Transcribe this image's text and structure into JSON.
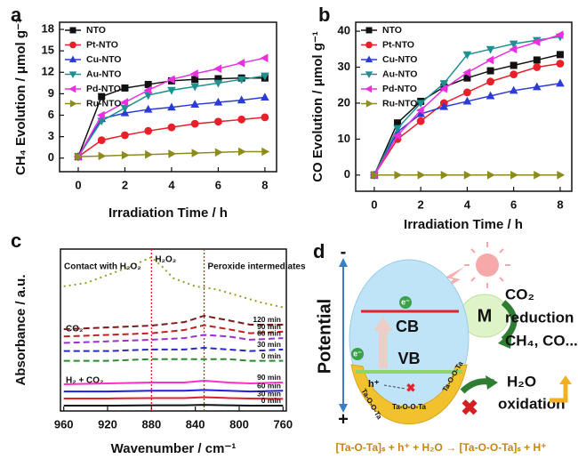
{
  "chart_data": [
    {
      "type": "line",
      "panel_label": "a",
      "xlabel": "Irradiation Time / h",
      "ylabel": "CH₄ Evolution / μmol g⁻¹",
      "x": [
        0,
        1,
        2,
        3,
        4,
        5,
        6,
        7,
        8
      ],
      "xlim": [
        -0.8,
        8.5
      ],
      "xticks": [
        0,
        2,
        4,
        6,
        8
      ],
      "ylim": [
        -1.9,
        19
      ],
      "yticks": [
        0,
        3,
        6,
        9,
        12,
        15,
        18
      ],
      "legend": "upper left",
      "series": [
        {
          "name": "NTO",
          "color": "#111111",
          "marker": "square",
          "values": [
            0.2,
            8.6,
            9.8,
            10.3,
            10.8,
            11.0,
            11.1,
            11.2,
            11.2
          ]
        },
        {
          "name": "Pt-NTO",
          "color": "#e8202a",
          "marker": "circle",
          "values": [
            0.2,
            2.5,
            3.2,
            3.8,
            4.3,
            4.8,
            5.1,
            5.4,
            5.7
          ]
        },
        {
          "name": "Cu-NTO",
          "color": "#2a3bd6",
          "marker": "triangle-up",
          "values": [
            0.2,
            5.5,
            6.3,
            6.8,
            7.1,
            7.5,
            7.8,
            8.1,
            8.5
          ]
        },
        {
          "name": "Au-NTO",
          "color": "#1f8f8f",
          "marker": "triangle-down",
          "values": [
            0.2,
            5.2,
            7.0,
            8.8,
            9.5,
            10.0,
            10.5,
            11.0,
            11.5
          ]
        },
        {
          "name": "Pd-NTO",
          "color": "#e830e0",
          "marker": "triangle-left",
          "values": [
            0.2,
            6.0,
            7.8,
            9.5,
            11.0,
            11.8,
            12.5,
            13.3,
            14.0
          ]
        },
        {
          "name": "Ru-NTO",
          "color": "#8c8c1c",
          "marker": "triangle-right",
          "values": [
            0.2,
            0.3,
            0.4,
            0.5,
            0.6,
            0.7,
            0.8,
            0.9,
            0.9
          ]
        }
      ]
    },
    {
      "type": "line",
      "panel_label": "b",
      "xlabel": "Irradiation Time / h",
      "ylabel": "CO Evolution / μmol g⁻¹",
      "x": [
        0,
        1,
        2,
        3,
        4,
        5,
        6,
        7,
        8
      ],
      "xlim": [
        -0.8,
        8.5
      ],
      "xticks": [
        0,
        2,
        4,
        6,
        8
      ],
      "ylim": [
        -4.5,
        42.5
      ],
      "yticks": [
        0,
        10,
        20,
        30,
        40
      ],
      "legend": "upper left",
      "series": [
        {
          "name": "NTO",
          "color": "#111111",
          "marker": "square",
          "values": [
            0,
            14.5,
            20.5,
            24.5,
            27,
            29,
            30.5,
            32,
            33.5
          ]
        },
        {
          "name": "Pt-NTO",
          "color": "#e8202a",
          "marker": "circle",
          "values": [
            0,
            10,
            15,
            20,
            23,
            26,
            28,
            30,
            31
          ]
        },
        {
          "name": "Cu-NTO",
          "color": "#2a3bd6",
          "marker": "triangle-up",
          "values": [
            0,
            12,
            17,
            19,
            20.5,
            22,
            23.5,
            24.5,
            25.5
          ]
        },
        {
          "name": "Au-NTO",
          "color": "#1f8f8f",
          "marker": "triangle-down",
          "values": [
            0,
            13,
            20,
            25.5,
            33.5,
            35,
            36.5,
            37.5,
            38.5
          ]
        },
        {
          "name": "Pd-NTO",
          "color": "#e830e0",
          "marker": "triangle-left",
          "values": [
            0,
            11,
            18,
            24,
            28.5,
            32,
            35,
            37,
            39
          ]
        },
        {
          "name": "Ru-NTO",
          "color": "#8c8c1c",
          "marker": "triangle-right",
          "values": [
            0,
            0,
            0,
            0,
            0,
            0,
            0,
            0,
            0
          ]
        }
      ]
    },
    {
      "type": "spectra",
      "panel_label": "c",
      "xlabel": "Wavenumber / cm⁻¹",
      "ylabel": "Absorbance / a.u.",
      "x": [
        960,
        920,
        880,
        850,
        832,
        810,
        790,
        760
      ],
      "xlim": [
        963,
        757
      ],
      "xticks": [
        960,
        920,
        880,
        840,
        800,
        760
      ],
      "ylim": [
        0,
        10
      ],
      "reference_lines": [
        {
          "x": 880,
          "label": "H₂O₂"
        },
        {
          "x": 832,
          "label": "Peroxide intermediates"
        }
      ],
      "annotations": [
        "CO₂",
        "H₂ + CO₂"
      ],
      "series": [
        {
          "name": "Contact with H₂O₂",
          "color": "#9a9a2a",
          "dash": "dotted",
          "x": [
            960,
            940,
            920,
            900,
            880,
            870,
            860,
            840,
            820,
            800,
            780,
            760
          ],
          "values": [
            7.7,
            7.9,
            8.4,
            8.9,
            9.5,
            8.9,
            8.2,
            7.7,
            7.5,
            7.1,
            6.7,
            6.4
          ]
        },
        {
          "name": "120 min",
          "color": "#7b1a1a",
          "dash": "dashed",
          "values": [
            5.05,
            5.16,
            5.27,
            5.49,
            5.88,
            5.6,
            5.33,
            5.33
          ]
        },
        {
          "name": "90 min",
          "color": "#c02020",
          "dash": "dashed",
          "values": [
            4.6,
            4.7,
            4.8,
            5.0,
            5.3,
            5.05,
            4.8,
            4.9
          ]
        },
        {
          "name": "60 min",
          "color": "#9b30d0",
          "dash": "dashed",
          "values": [
            4.2,
            4.3,
            4.4,
            4.5,
            4.7,
            4.6,
            4.4,
            4.5
          ]
        },
        {
          "name": "30 min",
          "color": "#2a2ac0",
          "dash": "dashed",
          "values": [
            3.7,
            3.7,
            3.8,
            3.8,
            3.9,
            3.8,
            3.7,
            3.8
          ]
        },
        {
          "name": "0 min",
          "color": "#2e8b2e",
          "dash": "dashed",
          "values": [
            3.1,
            3.1,
            3.2,
            3.2,
            3.2,
            3.2,
            3.1,
            3.1
          ]
        },
        {
          "name": "90 min",
          "color": "#ff30c8",
          "dash": "solid",
          "values": [
            1.65,
            1.7,
            1.76,
            1.76,
            1.87,
            1.76,
            1.7,
            1.76
          ]
        },
        {
          "name": "60 min",
          "color": "#2020e0",
          "dash": "solid",
          "values": [
            1.2,
            1.2,
            1.25,
            1.25,
            1.3,
            1.25,
            1.2,
            1.25
          ]
        },
        {
          "name": "30 min",
          "color": "#e02020",
          "dash": "solid",
          "values": [
            0.77,
            0.77,
            0.8,
            0.8,
            0.85,
            0.8,
            0.77,
            0.75
          ]
        },
        {
          "name": "0 min",
          "color": "#111111",
          "dash": "solid",
          "values": [
            0.33,
            0.33,
            0.35,
            0.35,
            0.38,
            0.35,
            0.33,
            0.33
          ]
        }
      ]
    }
  ],
  "diagram": {
    "panel_label": "d",
    "axis_label": "Potential",
    "negative": "-",
    "positive": "+",
    "cb": "CB",
    "vb": "VB",
    "electron": "e⁻",
    "hole": "h⁺",
    "cocatalyst": "M",
    "reduction": [
      "CO₂",
      "reduction",
      "CH₄, CO..."
    ],
    "oxidation": [
      "H₂O",
      "oxidation"
    ],
    "shell_labels": [
      "Ta-O-O-Ta",
      "Ta-O-O-Ta",
      "Ta-O-O-Ta"
    ],
    "equation": "[Ta-O-Ta]ₛ + h⁺ + H₂O → [Ta-O-O-Ta]ₛ + H⁺"
  }
}
